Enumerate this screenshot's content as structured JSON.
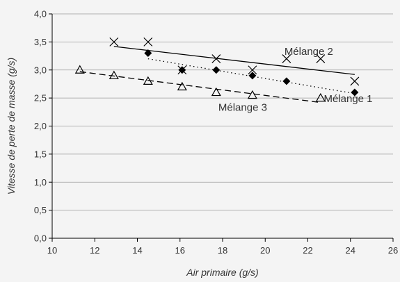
{
  "chart_data": {
    "type": "scatter",
    "title": "",
    "xlabel": "Air primaire (g/s)",
    "ylabel": "Vitesse de perte de masse (g/s)",
    "xlim": [
      10,
      26
    ],
    "ylim": [
      0,
      4
    ],
    "x_ticks": [
      10,
      12,
      14,
      16,
      18,
      20,
      22,
      24,
      26
    ],
    "x_tick_labels": [
      "10",
      "12",
      "14",
      "16",
      "18",
      "20",
      "22",
      "24",
      "26"
    ],
    "y_ticks": [
      0,
      0.5,
      1,
      1.5,
      2,
      2.5,
      3,
      3.5,
      4
    ],
    "y_tick_labels": [
      "0,0",
      "0,5",
      "1,0",
      "1,5",
      "2,0",
      "2,5",
      "3,0",
      "3,5",
      "4,0"
    ],
    "grid": "horizontal",
    "series": [
      {
        "name": "Mélange 2",
        "marker": "x",
        "line": "solid",
        "x": [
          12.9,
          14.5,
          16.1,
          17.7,
          19.4,
          21.0,
          22.6,
          24.2
        ],
        "y": [
          3.5,
          3.5,
          3.0,
          3.2,
          3.0,
          3.2,
          3.2,
          2.8
        ],
        "trend": {
          "x": [
            12.9,
            24.2
          ],
          "y": [
            3.42,
            2.92
          ]
        },
        "label_at": {
          "x": 20.9,
          "y": 3.27
        }
      },
      {
        "name": "Mélange 1",
        "marker": "diamond",
        "line": "dotted",
        "x": [
          14.5,
          16.1,
          17.7,
          19.4,
          21.0,
          24.2
        ],
        "y": [
          3.3,
          3.0,
          3.0,
          2.9,
          2.8,
          2.6
        ],
        "trend": {
          "x": [
            14.5,
            24.2
          ],
          "y": [
            3.2,
            2.58
          ]
        },
        "label_at": {
          "x": 22.75,
          "y": 2.43
        }
      },
      {
        "name": "Mélange 3",
        "marker": "triangle",
        "line": "dashed",
        "x": [
          11.3,
          12.9,
          14.5,
          16.1,
          17.7,
          19.4,
          22.6
        ],
        "y": [
          3.0,
          2.9,
          2.8,
          2.7,
          2.6,
          2.55,
          2.5
        ],
        "trend": {
          "x": [
            11.3,
            22.6
          ],
          "y": [
            2.97,
            2.42
          ]
        },
        "label_at": {
          "x": 17.8,
          "y": 2.27
        }
      }
    ]
  }
}
